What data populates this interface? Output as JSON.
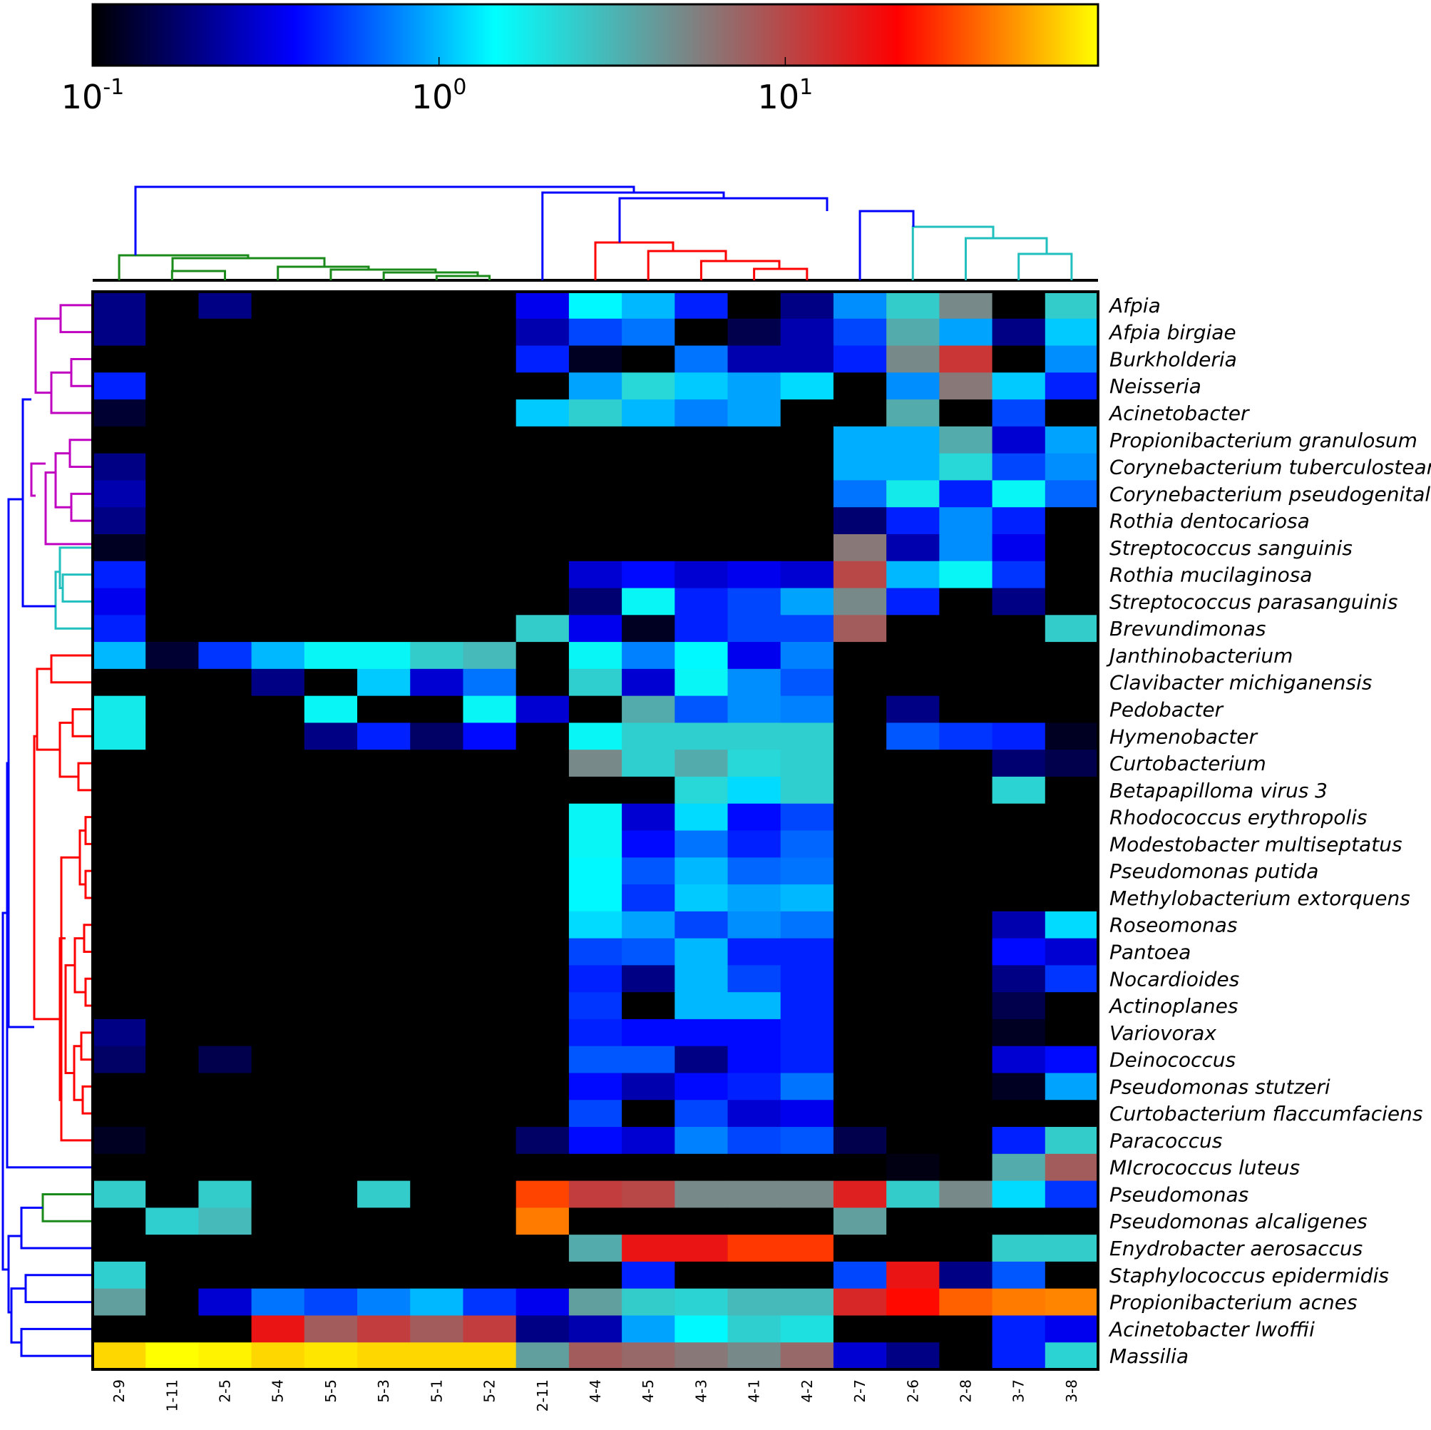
{
  "chart_data": {
    "type": "heatmap",
    "colorbar": {
      "scale": "log",
      "range": [
        0.1,
        80
      ],
      "ticks": [
        {
          "value": 0.1,
          "base": "10",
          "exp": "-1"
        },
        {
          "value": 1,
          "base": "10",
          "exp": "0"
        },
        {
          "value": 10,
          "base": "10",
          "exp": "1"
        }
      ],
      "colors": [
        "#000000",
        "#0000FF",
        "#00FFFF",
        "#808080",
        "#FF0000",
        "#FFFF00"
      ]
    },
    "columns": [
      "2-9",
      "1-11",
      "2-5",
      "5-4",
      "5-5",
      "5-3",
      "5-1",
      "5-2",
      "2-11",
      "4-4",
      "4-5",
      "4-3",
      "4-1",
      "4-2",
      "2-7",
      "2-6",
      "2-8",
      "3-7",
      "3-8"
    ],
    "rows": [
      "Afpia",
      "Afpia birgiae",
      "Burkholderia",
      "Neisseria",
      "Acinetobacter",
      "Propionibacterium granulosum",
      "Corynebacterium tuberculostearicum",
      "Corynebacterium pseudogenitalium",
      "Rothia dentocariosa",
      "Streptococcus sanguinis",
      "Rothia mucilaginosa",
      "Streptococcus parasanguinis",
      "Brevundimonas",
      "Janthinobacterium",
      "Clavibacter michiganensis",
      "Pedobacter",
      "Hymenobacter",
      "Curtobacterium",
      "Betapapilloma virus 3",
      "Rhodococcus erythropolis",
      "Modestobacter multiseptatus",
      "Pseudomonas putida",
      "Methylobacterium extorquens",
      "Roseomonas",
      "Pantoea",
      "Nocardioides",
      "Actinoplanes",
      "Variovorax",
      "Deinococcus",
      "Pseudomonas stutzeri",
      "Curtobacterium flaccumfaciens",
      "Paracoccus",
      "MIcrococcus luteus",
      "Pseudomonas",
      "Pseudomonas alcaligenes",
      "Enydrobacter aerosaccus",
      "Staphylococcus epidermidis",
      "Propionibacterium acnes",
      "Acinetobacter lwoffii",
      "Massilia"
    ],
    "values": [
      [
        0.2,
        0,
        0.2,
        0,
        0,
        0,
        0,
        0,
        0.35,
        1.4,
        1.0,
        0.45,
        0.1,
        0.2,
        0.8,
        2.5,
        5,
        0,
        2.5
      ],
      [
        0.2,
        0,
        0,
        0,
        0,
        0,
        0,
        0,
        0.25,
        0.55,
        0.7,
        0.1,
        0.15,
        0.25,
        0.55,
        3.5,
        0.9,
        0.2,
        1.1
      ],
      [
        0,
        0,
        0,
        0,
        0,
        0,
        0,
        0,
        0.45,
        0.12,
        0,
        0.7,
        0.25,
        0.25,
        0.45,
        5,
        12,
        0,
        0.8
      ],
      [
        0.45,
        0,
        0,
        0,
        0,
        0,
        0,
        0,
        0,
        0.9,
        2.2,
        1.1,
        0.9,
        1.2,
        0,
        0.8,
        6,
        1.1,
        0.45
      ],
      [
        0.13,
        0,
        0,
        0,
        0,
        0,
        0,
        0,
        1.1,
        2.4,
        1.0,
        0.75,
        0.9,
        0,
        0,
        3.5,
        0,
        0.55,
        0
      ],
      [
        0,
        0,
        0,
        0,
        0,
        0,
        0,
        0,
        0,
        0,
        0,
        0,
        0,
        0,
        0.95,
        0.95,
        3.5,
        0.3,
        0.9
      ],
      [
        0.2,
        0,
        0,
        0,
        0,
        0,
        0,
        0,
        0,
        0,
        0,
        0,
        0,
        0,
        0.95,
        0.95,
        2.2,
        0.55,
        0.8
      ],
      [
        0.25,
        0,
        0,
        0,
        0,
        0,
        0,
        0,
        0,
        0,
        0,
        0,
        0,
        0,
        0.7,
        1.8,
        0.45,
        1.6,
        0.65
      ],
      [
        0.2,
        0,
        0,
        0,
        0,
        0,
        0,
        0,
        0,
        0,
        0,
        0,
        0,
        0,
        0.18,
        0.45,
        0.8,
        0.45,
        0
      ],
      [
        0.12,
        0,
        0,
        0,
        0,
        0,
        0,
        0,
        0,
        0,
        0,
        0,
        0,
        0,
        6,
        0.25,
        0.8,
        0.35,
        0
      ],
      [
        0.45,
        0,
        0,
        0,
        0,
        0,
        0,
        0,
        0,
        0.3,
        0.4,
        0.3,
        0.35,
        0.3,
        10,
        1.0,
        1.6,
        0.5,
        0
      ],
      [
        0.35,
        0,
        0,
        0,
        0,
        0,
        0,
        0,
        0,
        0.18,
        1.6,
        0.45,
        0.55,
        0.9,
        5,
        0.45,
        0,
        0.2,
        0
      ],
      [
        0.45,
        0,
        0,
        0,
        0,
        0,
        0,
        0,
        2.5,
        0.35,
        0.12,
        0.45,
        0.55,
        0.55,
        8,
        0,
        0,
        0,
        2.5
      ],
      [
        1.0,
        0.13,
        0.5,
        1.0,
        1.6,
        1.6,
        2.5,
        3.0,
        0,
        1.6,
        0.75,
        1.4,
        0.35,
        0.75,
        0,
        0,
        0,
        0,
        0
      ],
      [
        0,
        0,
        0,
        0.2,
        0,
        1.1,
        0.3,
        0.7,
        0,
        2.4,
        0.3,
        1.6,
        0.8,
        0.6,
        0,
        0,
        0,
        0,
        0
      ],
      [
        1.8,
        0,
        0,
        0,
        1.6,
        0,
        0,
        1.6,
        0.3,
        0,
        3.5,
        0.6,
        0.8,
        0.75,
        0,
        0.2,
        0,
        0,
        0
      ],
      [
        1.8,
        0,
        0,
        0,
        0.2,
        0.45,
        0.17,
        0.4,
        0,
        1.6,
        2.4,
        2.4,
        2.4,
        2.4,
        0,
        0.6,
        0.5,
        0.45,
        0.12
      ],
      [
        0,
        0,
        0,
        0,
        0,
        0,
        0,
        0,
        0,
        5,
        2.4,
        3.5,
        2.2,
        2.4,
        0,
        0,
        0,
        0.18,
        0.15
      ],
      [
        0,
        0,
        0,
        0,
        0,
        0,
        0,
        0,
        0,
        0,
        0,
        2.2,
        1.2,
        2.4,
        0,
        0,
        0,
        2.3,
        0
      ],
      [
        0,
        0,
        0,
        0,
        0,
        0,
        0,
        0,
        0,
        1.6,
        0.3,
        1.2,
        0.4,
        0.55,
        0,
        0,
        0,
        0,
        0
      ],
      [
        0,
        0,
        0,
        0,
        0,
        0,
        0,
        0,
        0,
        1.6,
        0.4,
        0.7,
        0.45,
        0.65,
        0,
        0,
        0,
        0,
        0
      ],
      [
        0,
        0,
        0,
        0,
        0,
        0,
        0,
        0,
        0,
        1.4,
        0.6,
        1.0,
        0.65,
        0.7,
        0,
        0,
        0,
        0,
        0
      ],
      [
        0,
        0,
        0,
        0,
        0,
        0,
        0,
        0,
        0,
        1.4,
        0.5,
        1.1,
        0.9,
        1.0,
        0,
        0,
        0,
        0,
        0
      ],
      [
        0,
        0,
        0,
        0,
        0,
        0,
        0,
        0,
        0,
        1.2,
        0.9,
        0.55,
        0.8,
        0.7,
        0,
        0,
        0,
        0.25,
        1.2
      ],
      [
        0,
        0,
        0,
        0,
        0,
        0,
        0,
        0,
        0,
        0.55,
        0.6,
        1.0,
        0.45,
        0.45,
        0,
        0,
        0,
        0.4,
        0.3
      ],
      [
        0,
        0,
        0,
        0,
        0,
        0,
        0,
        0,
        0,
        0.45,
        0.2,
        1.0,
        0.55,
        0.45,
        0,
        0,
        0,
        0.2,
        0.5
      ],
      [
        0,
        0,
        0,
        0,
        0,
        0,
        0,
        0,
        0,
        0.5,
        0,
        1.0,
        1.0,
        0.45,
        0,
        0,
        0,
        0.15,
        0
      ],
      [
        0.2,
        0,
        0,
        0,
        0,
        0,
        0,
        0,
        0,
        0.45,
        0.4,
        0.4,
        0.4,
        0.45,
        0,
        0,
        0,
        0.12,
        0
      ],
      [
        0.17,
        0,
        0.15,
        0,
        0,
        0,
        0,
        0,
        0,
        0.6,
        0.6,
        0.2,
        0.4,
        0.45,
        0,
        0,
        0,
        0.3,
        0.4
      ],
      [
        0,
        0,
        0,
        0,
        0,
        0,
        0,
        0,
        0,
        0.4,
        0.25,
        0.4,
        0.45,
        0.7,
        0,
        0,
        0,
        0.12,
        0.9
      ],
      [
        0,
        0,
        0,
        0,
        0,
        0,
        0,
        0,
        0,
        0.55,
        0,
        0.55,
        0.3,
        0.35,
        0,
        0,
        0,
        0,
        0
      ],
      [
        0.12,
        0,
        0,
        0,
        0,
        0,
        0,
        0,
        0.17,
        0.4,
        0.3,
        0.75,
        0.55,
        0.6,
        0.15,
        0,
        0,
        0.45,
        2.5
      ],
      [
        0,
        0,
        0,
        0,
        0,
        0,
        0,
        0,
        0,
        0,
        0,
        0,
        0,
        0,
        0,
        0.11,
        0,
        3.5,
        8
      ],
      [
        2.5,
        0,
        2.5,
        0,
        0,
        2.5,
        0,
        0,
        30,
        11,
        10,
        5,
        5,
        5,
        15,
        2.5,
        5,
        1.2,
        0.5
      ],
      [
        0,
        2.4,
        3.0,
        0,
        0,
        0,
        0,
        0,
        40,
        0,
        0,
        0,
        0,
        0,
        4,
        0,
        0,
        0,
        0
      ],
      [
        0,
        0,
        0,
        0,
        0,
        0,
        0,
        0,
        0,
        3.5,
        17,
        17,
        28,
        28,
        0,
        0,
        0,
        2.5,
        2.5
      ],
      [
        2.4,
        0,
        0,
        0,
        0,
        0,
        0,
        0,
        0,
        0,
        0.45,
        0,
        0,
        0,
        0.55,
        17,
        0.2,
        0.6,
        0
      ],
      [
        4,
        0,
        0.3,
        0.7,
        0.55,
        0.75,
        1.0,
        0.5,
        0.35,
        4,
        2.5,
        2.3,
        3.0,
        3.0,
        14,
        22,
        35,
        40,
        42
      ],
      [
        0,
        0,
        0,
        17,
        8,
        11,
        8,
        11,
        0.2,
        0.25,
        0.9,
        1.4,
        2.4,
        2.0,
        0,
        0,
        0,
        0.45,
        0.35
      ],
      [
        65,
        80,
        75,
        65,
        70,
        65,
        65,
        65,
        4,
        8,
        7,
        6,
        5,
        7,
        0.3,
        0.2,
        0,
        0.45,
        2.3
      ]
    ]
  }
}
